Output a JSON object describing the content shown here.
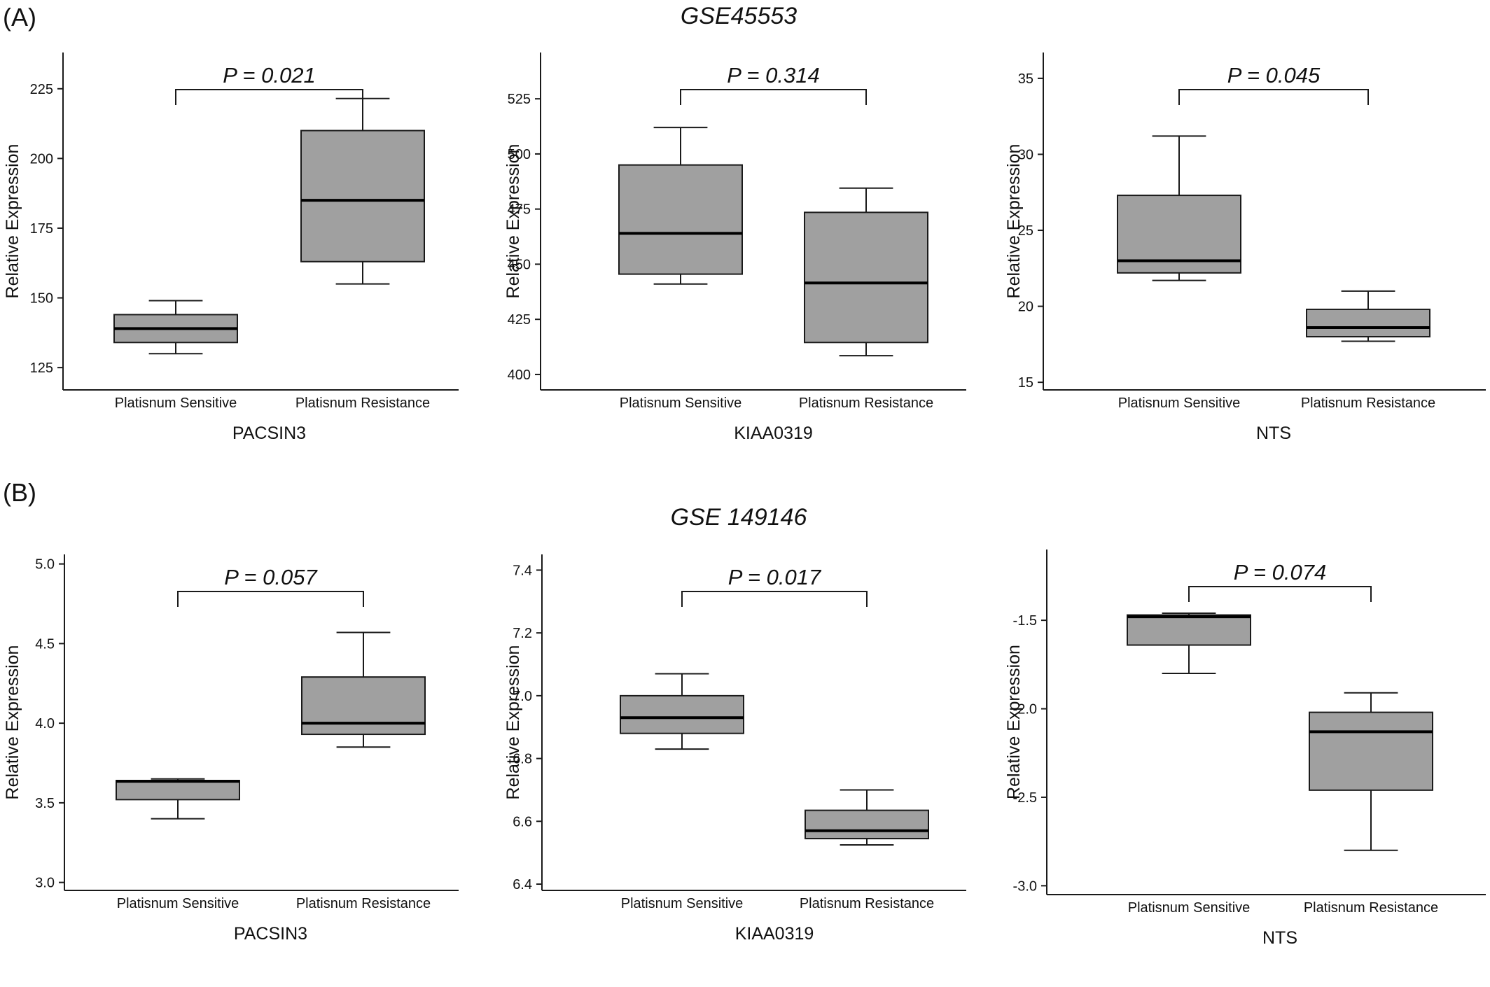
{
  "panel_labels": [
    "(A)",
    "(B)"
  ],
  "group_titles": [
    "GSE45553",
    "GSE 149146"
  ],
  "colors": {
    "box_fill": "#a0a0a0",
    "stroke": "#1a1a1a"
  },
  "chart_data": [
    {
      "type": "box",
      "gene": "PACSIN3",
      "ylabel": "Relative Expression",
      "categories": [
        "Platisnum Sensitive",
        "Platisnum Resistance"
      ],
      "ylim": [
        117,
        238
      ],
      "yticks": [
        125,
        150,
        175,
        200,
        225
      ],
      "tick_decimals": 0,
      "p_label": "P = 0.021",
      "boxes": [
        {
          "whisker_low": 130,
          "q1": 134,
          "median": 139,
          "q3": 144,
          "whisker_high": 149
        },
        {
          "whisker_low": 155,
          "q1": 163,
          "median": 185,
          "q3": 210,
          "whisker_high": 221.5
        }
      ]
    },
    {
      "type": "box",
      "gene": "KIAA0319",
      "ylabel": "Relative Expression",
      "categories": [
        "Platisnum Sensitive",
        "Platisnum Resistance"
      ],
      "ylim": [
        393,
        546
      ],
      "yticks": [
        400,
        425,
        450,
        475,
        500,
        525
      ],
      "tick_decimals": 0,
      "p_label": "P = 0.314",
      "boxes": [
        {
          "whisker_low": 441,
          "q1": 445.5,
          "median": 464,
          "q3": 495,
          "whisker_high": 512
        },
        {
          "whisker_low": 408.5,
          "q1": 414.5,
          "median": 441.5,
          "q3": 473.5,
          "whisker_high": 484.5
        }
      ]
    },
    {
      "type": "box",
      "gene": "NTS",
      "ylabel": "Relative Expression",
      "categories": [
        "Platisnum Sensitive",
        "Platisnum Resistance"
      ],
      "ylim": [
        14.5,
        36.7
      ],
      "yticks": [
        15,
        20,
        25,
        30,
        35
      ],
      "tick_decimals": 0,
      "p_label": "P = 0.045",
      "boxes": [
        {
          "whisker_low": 21.7,
          "q1": 22.2,
          "median": 23,
          "q3": 27.3,
          "whisker_high": 31.2
        },
        {
          "whisker_low": 17.7,
          "q1": 18,
          "median": 18.6,
          "q3": 19.8,
          "whisker_high": 21
        }
      ]
    },
    {
      "type": "box",
      "gene": "PACSIN3",
      "ylabel": "Relative Expression",
      "categories": [
        "Platisnum Sensitive",
        "Platisnum Resistance"
      ],
      "ylim": [
        2.95,
        5.06
      ],
      "yticks": [
        3.0,
        3.5,
        4.0,
        4.5,
        5.0
      ],
      "tick_decimals": 1,
      "p_label": "P = 0.057",
      "boxes": [
        {
          "whisker_low": 3.4,
          "q1": 3.52,
          "median": 3.635,
          "q3": 3.64,
          "whisker_high": 3.65
        },
        {
          "whisker_low": 3.85,
          "q1": 3.93,
          "median": 4.0,
          "q3": 4.29,
          "whisker_high": 4.57
        }
      ]
    },
    {
      "type": "box",
      "gene": "KIAA0319",
      "ylabel": "Relative Expression",
      "categories": [
        "Platisnum Sensitive",
        "Platisnum Resistance"
      ],
      "ylim": [
        6.38,
        7.45
      ],
      "yticks": [
        6.4,
        6.6,
        6.8,
        7.0,
        7.2,
        7.4
      ],
      "tick_decimals": 1,
      "p_label": "P = 0.017",
      "boxes": [
        {
          "whisker_low": 6.83,
          "q1": 6.88,
          "median": 6.93,
          "q3": 7.0,
          "whisker_high": 7.07
        },
        {
          "whisker_low": 6.525,
          "q1": 6.545,
          "median": 6.57,
          "q3": 6.635,
          "whisker_high": 6.7
        }
      ]
    },
    {
      "type": "box",
      "gene": "NTS",
      "ylabel": "Relative Expression",
      "categories": [
        "Platisnum Sensitive",
        "Platisnum Resistance"
      ],
      "ylim": [
        -3.05,
        -1.1
      ],
      "yticks": [
        -3.0,
        -2.5,
        -2.0,
        -1.5
      ],
      "tick_decimals": 1,
      "p_label": "P = 0.074",
      "boxes": [
        {
          "whisker_low": -1.8,
          "q1": -1.64,
          "median": -1.48,
          "q3": -1.47,
          "whisker_high": -1.46
        },
        {
          "whisker_low": -2.8,
          "q1": -2.46,
          "median": -2.13,
          "q3": -2.02,
          "whisker_high": -1.91
        }
      ]
    }
  ]
}
